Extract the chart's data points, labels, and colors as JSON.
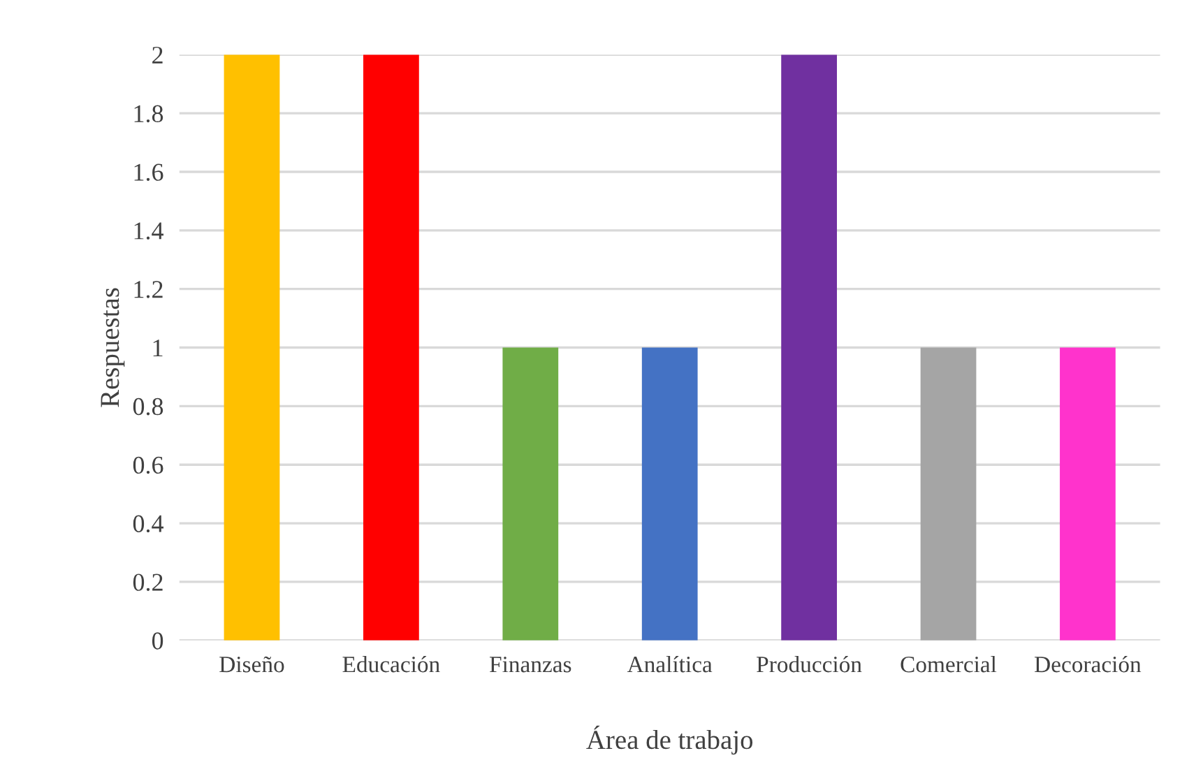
{
  "chart_data": {
    "type": "bar",
    "xlabel": "Área de trabajo",
    "ylabel": "Respuestas",
    "categories": [
      "Diseño",
      "Educación",
      "Finanzas",
      "Analítica",
      "Producción",
      "Comercial",
      "Decoración"
    ],
    "values": [
      2,
      2,
      1,
      1,
      2,
      1,
      1
    ],
    "colors": [
      "#ffc000",
      "#ff0000",
      "#70ad47",
      "#4472c4",
      "#7030a0",
      "#a5a5a5",
      "#ff33cc"
    ],
    "ylim": [
      0,
      2
    ],
    "yticks": [
      0,
      0.2,
      0.4,
      0.6,
      0.8,
      1,
      1.2,
      1.4,
      1.6,
      1.8,
      2
    ],
    "grid": "y"
  }
}
